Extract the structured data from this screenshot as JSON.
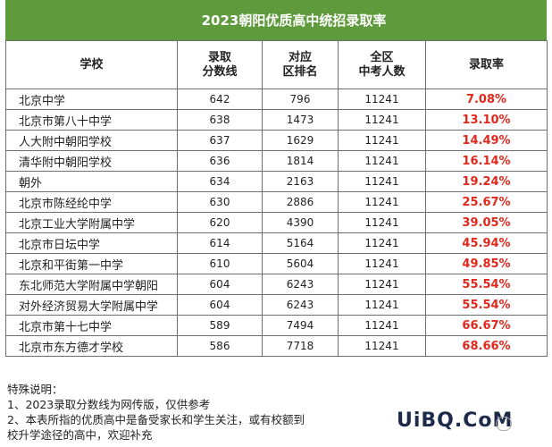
{
  "title": "2023朝阳优质高中统招录取率",
  "headers": {
    "school": "学校",
    "score_l1": "录取",
    "score_l2": "分数线",
    "rank_l1": "对应",
    "rank_l2": "区排名",
    "total_l1": "全区",
    "total_l2": "中考人数",
    "rate": "录取率"
  },
  "rows": [
    {
      "school": "北京中学",
      "score": "642",
      "rank": "796",
      "total": "11241",
      "rate": "7.08%"
    },
    {
      "school": "北京市第八十中学",
      "score": "638",
      "rank": "1473",
      "total": "11241",
      "rate": "13.10%"
    },
    {
      "school": "人大附中朝阳学校",
      "score": "637",
      "rank": "1629",
      "total": "11241",
      "rate": "14.49%"
    },
    {
      "school": "清华附中朝阳学校",
      "score": "636",
      "rank": "1814",
      "total": "11241",
      "rate": "16.14%"
    },
    {
      "school": "朝外",
      "score": "634",
      "rank": "2163",
      "total": "11241",
      "rate": "19.24%"
    },
    {
      "school": "北京市陈经纶中学",
      "score": "630",
      "rank": "2886",
      "total": "11241",
      "rate": "25.67%"
    },
    {
      "school": "北京工业大学附属中学",
      "score": "620",
      "rank": "4390",
      "total": "11241",
      "rate": "39.05%"
    },
    {
      "school": "北京市日坛中学",
      "score": "614",
      "rank": "5164",
      "total": "11241",
      "rate": "45.94%"
    },
    {
      "school": "北京和平街第一中学",
      "score": "610",
      "rank": "5604",
      "total": "11241",
      "rate": "49.85%"
    },
    {
      "school": "东北师范大学附属中学朝阳",
      "score": "604",
      "rank": "6243",
      "total": "11241",
      "rate": "55.54%"
    },
    {
      "school": "对外经济贸易大学附属中学",
      "score": "604",
      "rank": "6243",
      "total": "11241",
      "rate": "55.54%"
    },
    {
      "school": "北京市第十七中学",
      "score": "589",
      "rank": "7494",
      "total": "11241",
      "rate": "66.67%"
    },
    {
      "school": "北京市东方德才学校",
      "score": "586",
      "rank": "7718",
      "total": "11241",
      "rate": "68.66%"
    }
  ],
  "notes": {
    "heading": "特殊说明：",
    "line1": "1、2023录取分数线为网传版，仅供参考",
    "line2": "2、本表所指的优质高中是备受家长和学生关注，或有校额到",
    "line3": "校升学途径的高中，欢迎补充"
  },
  "watermark": {
    "logo": "UiBQ.CoM",
    "small": "ꞌ"
  }
}
